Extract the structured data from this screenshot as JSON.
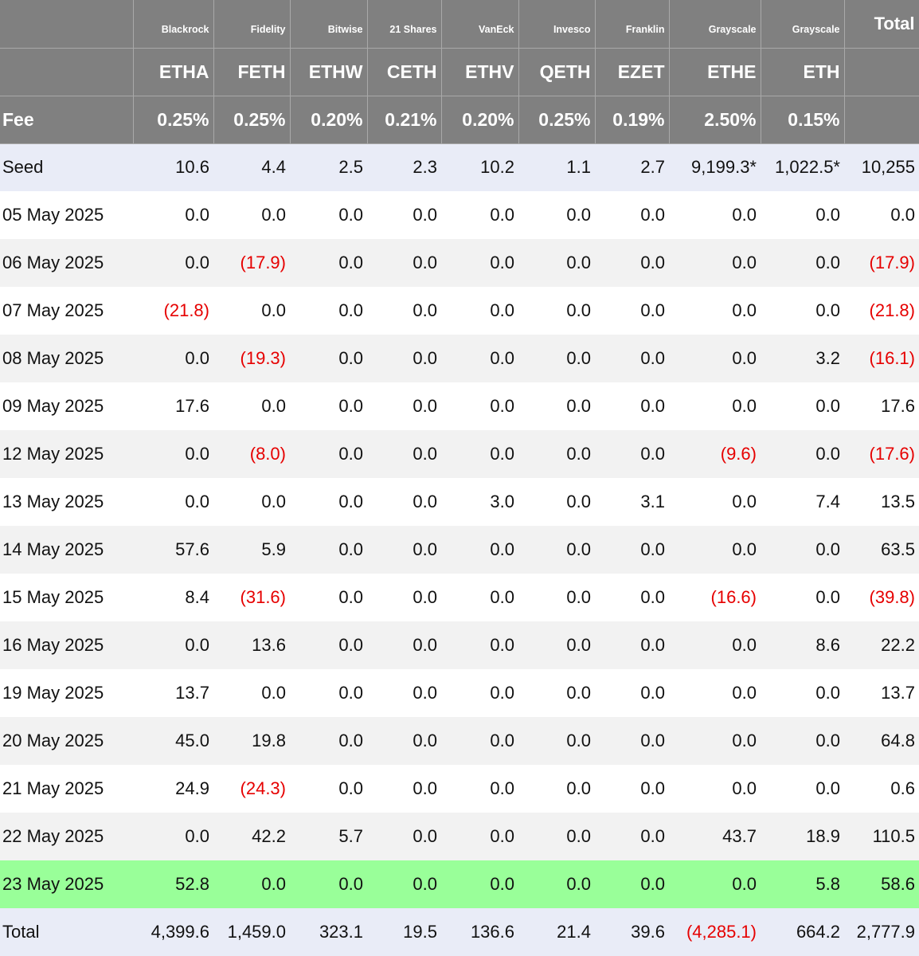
{
  "providers": [
    "Blackrock",
    "Fidelity",
    "Bitwise",
    "21 Shares",
    "VanEck",
    "Invesco",
    "Franklin",
    "Grayscale",
    "Grayscale"
  ],
  "tickers": [
    "ETHA",
    "FETH",
    "ETHW",
    "CETH",
    "ETHV",
    "QETH",
    "EZET",
    "ETHE",
    "ETH"
  ],
  "fee_label": "Fee",
  "fees": [
    "0.25%",
    "0.25%",
    "0.20%",
    "0.21%",
    "0.20%",
    "0.25%",
    "0.19%",
    "2.50%",
    "0.15%"
  ],
  "total_header": "Total",
  "rows": [
    {
      "label": "Seed",
      "values": [
        "10.6",
        "4.4",
        "2.5",
        "2.3",
        "10.2",
        "1.1",
        "2.7",
        "9,199.3*",
        "1,022.5*",
        "10,255"
      ]
    },
    {
      "label": "05 May 2025",
      "values": [
        "0.0",
        "0.0",
        "0.0",
        "0.0",
        "0.0",
        "0.0",
        "0.0",
        "0.0",
        "0.0",
        "0.0"
      ]
    },
    {
      "label": "06 May 2025",
      "values": [
        "0.0",
        "(17.9)",
        "0.0",
        "0.0",
        "0.0",
        "0.0",
        "0.0",
        "0.0",
        "0.0",
        "(17.9)"
      ]
    },
    {
      "label": "07 May 2025",
      "values": [
        "(21.8)",
        "0.0",
        "0.0",
        "0.0",
        "0.0",
        "0.0",
        "0.0",
        "0.0",
        "0.0",
        "(21.8)"
      ]
    },
    {
      "label": "08 May 2025",
      "values": [
        "0.0",
        "(19.3)",
        "0.0",
        "0.0",
        "0.0",
        "0.0",
        "0.0",
        "0.0",
        "3.2",
        "(16.1)"
      ]
    },
    {
      "label": "09 May 2025",
      "values": [
        "17.6",
        "0.0",
        "0.0",
        "0.0",
        "0.0",
        "0.0",
        "0.0",
        "0.0",
        "0.0",
        "17.6"
      ]
    },
    {
      "label": "12 May 2025",
      "values": [
        "0.0",
        "(8.0)",
        "0.0",
        "0.0",
        "0.0",
        "0.0",
        "0.0",
        "(9.6)",
        "0.0",
        "(17.6)"
      ]
    },
    {
      "label": "13 May 2025",
      "values": [
        "0.0",
        "0.0",
        "0.0",
        "0.0",
        "3.0",
        "0.0",
        "3.1",
        "0.0",
        "7.4",
        "13.5"
      ]
    },
    {
      "label": "14 May 2025",
      "values": [
        "57.6",
        "5.9",
        "0.0",
        "0.0",
        "0.0",
        "0.0",
        "0.0",
        "0.0",
        "0.0",
        "63.5"
      ]
    },
    {
      "label": "15 May 2025",
      "values": [
        "8.4",
        "(31.6)",
        "0.0",
        "0.0",
        "0.0",
        "0.0",
        "0.0",
        "(16.6)",
        "0.0",
        "(39.8)"
      ]
    },
    {
      "label": "16 May 2025",
      "values": [
        "0.0",
        "13.6",
        "0.0",
        "0.0",
        "0.0",
        "0.0",
        "0.0",
        "0.0",
        "8.6",
        "22.2"
      ]
    },
    {
      "label": "19 May 2025",
      "values": [
        "13.7",
        "0.0",
        "0.0",
        "0.0",
        "0.0",
        "0.0",
        "0.0",
        "0.0",
        "0.0",
        "13.7"
      ]
    },
    {
      "label": "20 May 2025",
      "values": [
        "45.0",
        "19.8",
        "0.0",
        "0.0",
        "0.0",
        "0.0",
        "0.0",
        "0.0",
        "0.0",
        "64.8"
      ]
    },
    {
      "label": "21 May 2025",
      "values": [
        "24.9",
        "(24.3)",
        "0.0",
        "0.0",
        "0.0",
        "0.0",
        "0.0",
        "0.0",
        "0.0",
        "0.6"
      ]
    },
    {
      "label": "22 May 2025",
      "values": [
        "0.0",
        "42.2",
        "5.7",
        "0.0",
        "0.0",
        "0.0",
        "0.0",
        "43.7",
        "18.9",
        "110.5"
      ]
    },
    {
      "label": "23 May 2025",
      "values": [
        "52.8",
        "0.0",
        "0.0",
        "0.0",
        "0.0",
        "0.0",
        "0.0",
        "0.0",
        "5.8",
        "58.6"
      ]
    },
    {
      "label": "Total",
      "values": [
        "4,399.6",
        "1,459.0",
        "323.1",
        "19.5",
        "136.6",
        "21.4",
        "39.6",
        "(4,285.1)",
        "664.2",
        "2,777.9"
      ]
    }
  ],
  "colors": {
    "header_bg": "#808080",
    "negative": "#e60000",
    "highlight_row": "#99ff99",
    "seed_total_row": "#e9ecf7",
    "alt_row": "#f2f2f2"
  }
}
